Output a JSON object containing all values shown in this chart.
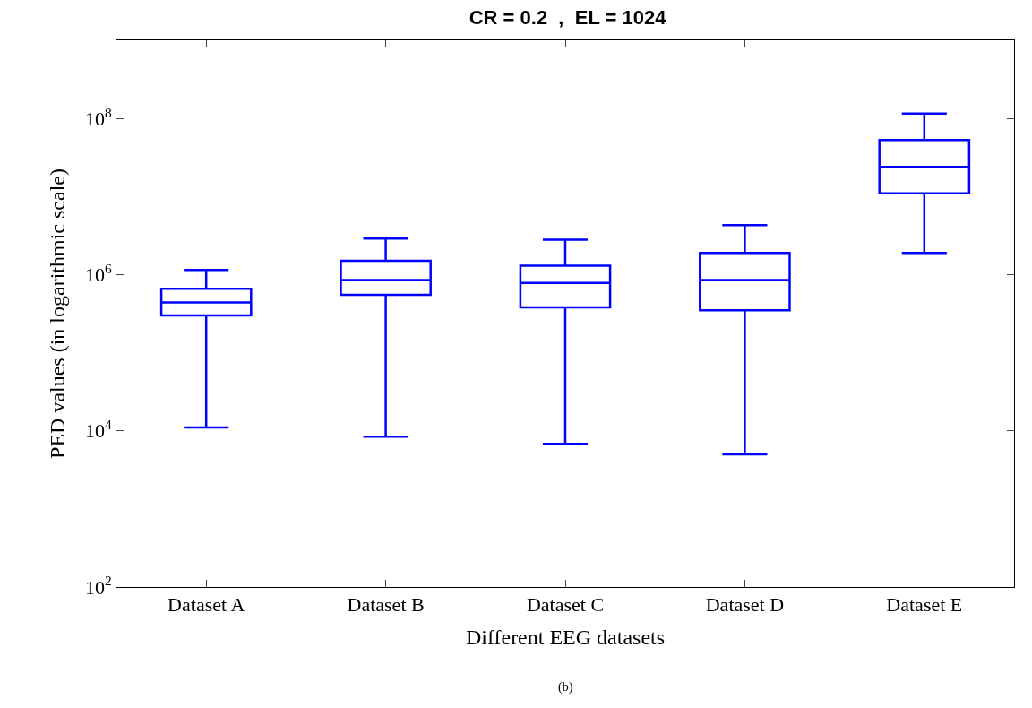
{
  "chart_data": {
    "type": "box",
    "title": "CR = 0.2  ,  EL = 1024",
    "xlabel": "Different EEG datasets",
    "ylabel": "PED values (in logarithmic scale)",
    "categories": [
      "Dataset A",
      "Dataset B",
      "Dataset C",
      "Dataset D",
      "Dataset E"
    ],
    "series": [
      {
        "color": "#0000ff",
        "boxes": [
          {
            "low": 11000,
            "q1": 300000,
            "median": 440000,
            "q3": 660000,
            "high": 1150000
          },
          {
            "low": 8400,
            "q1": 550000,
            "median": 850000,
            "q3": 1500000,
            "high": 2900000
          },
          {
            "low": 6800,
            "q1": 380000,
            "median": 780000,
            "q3": 1300000,
            "high": 2800000
          },
          {
            "low": 5000,
            "q1": 350000,
            "median": 850000,
            "q3": 1900000,
            "high": 4300000
          },
          {
            "low": 1900000,
            "q1": 11000000,
            "median": 24000000,
            "q3": 53000000,
            "high": 115000000
          }
        ]
      }
    ],
    "log": "y",
    "ylim": [
      100,
      1000000000
    ],
    "yticks": [
      {
        "value": 100,
        "label": "10$^{2}$"
      },
      {
        "value": 10000,
        "label": "10$^{4}$"
      },
      {
        "value": 1000000,
        "label": "10$^{6}$"
      },
      {
        "value": 100000000,
        "label": "10$^{8}$"
      }
    ],
    "annotations": [
      "(b)"
    ]
  }
}
